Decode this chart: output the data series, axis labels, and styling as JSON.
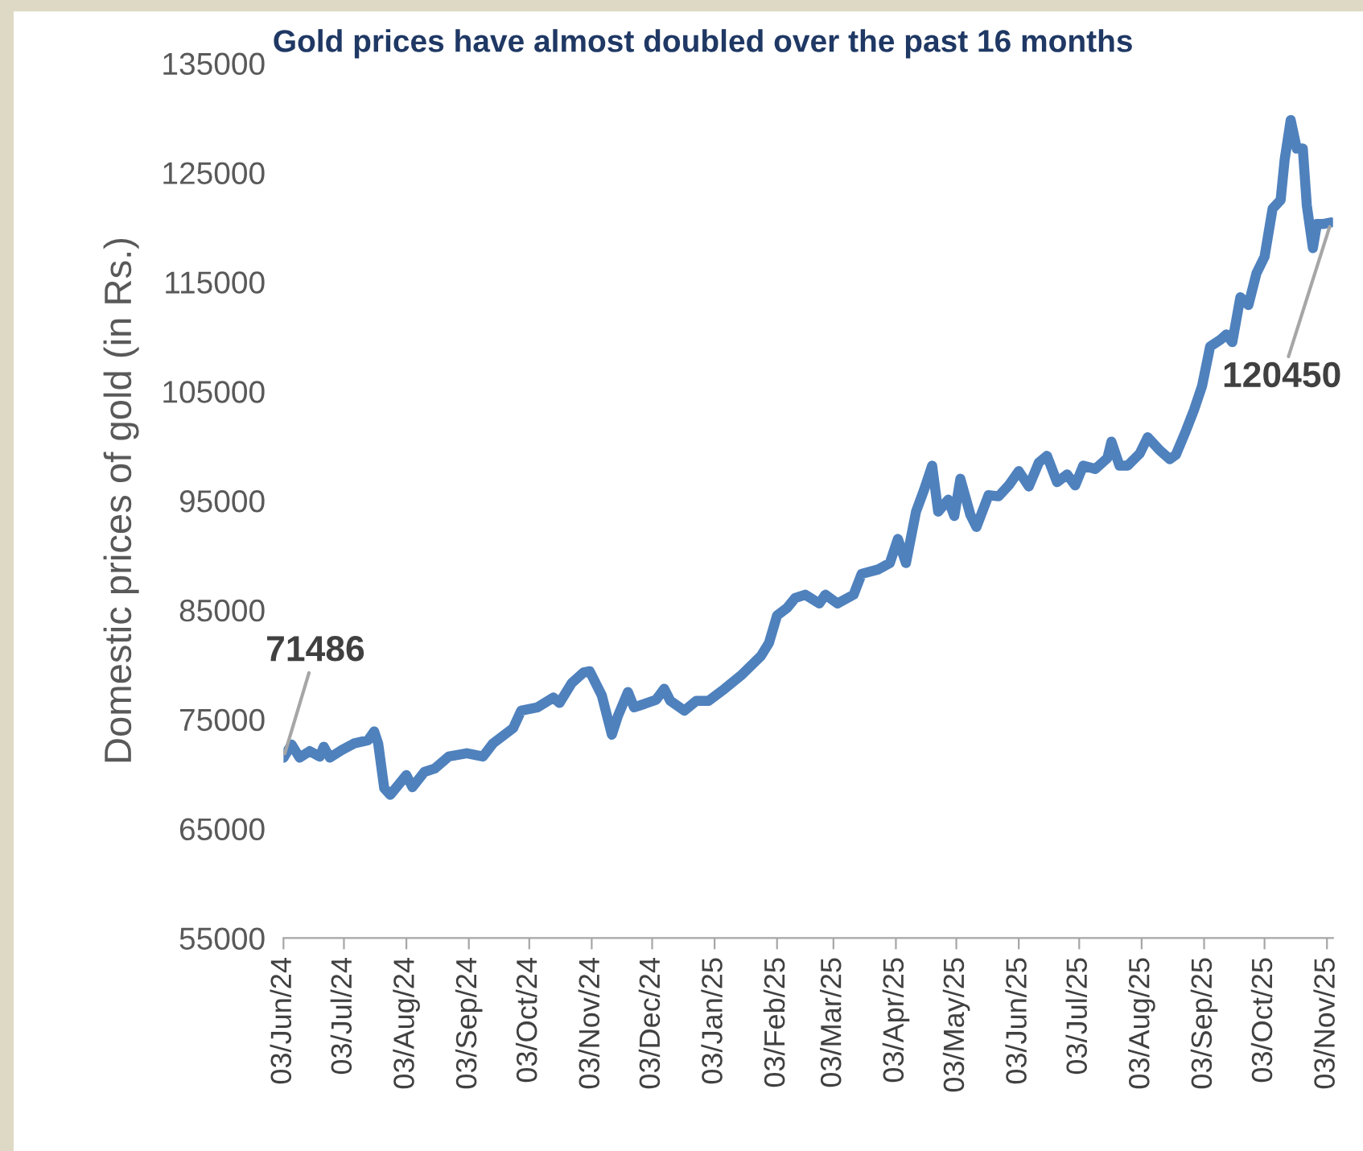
{
  "chart_data": {
    "type": "line",
    "title": "Gold prices have almost doubled over the past 16 months",
    "ylabel": "Domestic prices of gold (in Rs.)",
    "x": [
      "2024-06-03",
      "2024-06-07",
      "2024-06-11",
      "2024-06-16",
      "2024-06-21",
      "2024-06-23",
      "2024-06-26",
      "2024-07-02",
      "2024-07-08",
      "2024-07-15",
      "2024-07-18",
      "2024-07-20",
      "2024-07-23",
      "2024-07-26",
      "2024-07-30",
      "2024-08-03",
      "2024-08-06",
      "2024-08-12",
      "2024-08-17",
      "2024-08-24",
      "2024-09-02",
      "2024-09-10",
      "2024-09-15",
      "2024-09-25",
      "2024-09-29",
      "2024-10-07",
      "2024-10-15",
      "2024-10-18",
      "2024-10-24",
      "2024-10-30",
      "2024-11-02",
      "2024-11-08",
      "2024-11-13",
      "2024-11-16",
      "2024-11-21",
      "2024-11-24",
      "2024-11-29",
      "2024-12-05",
      "2024-12-09",
      "2024-12-12",
      "2024-12-19",
      "2024-12-25",
      "2024-12-31",
      "2025-01-08",
      "2025-01-16",
      "2025-01-26",
      "2025-01-30",
      "2025-02-03",
      "2025-02-08",
      "2025-02-12",
      "2025-02-17",
      "2025-02-24",
      "2025-02-27",
      "2025-03-05",
      "2025-03-13",
      "2025-03-17",
      "2025-03-25",
      "2025-03-31",
      "2025-04-04",
      "2025-04-08",
      "2025-04-13",
      "2025-04-17",
      "2025-04-21",
      "2025-04-24",
      "2025-04-29",
      "2025-05-02",
      "2025-05-05",
      "2025-05-10",
      "2025-05-13",
      "2025-05-19",
      "2025-05-24",
      "2025-05-29",
      "2025-06-03",
      "2025-06-08",
      "2025-06-13",
      "2025-06-17",
      "2025-06-22",
      "2025-06-27",
      "2025-07-01",
      "2025-07-05",
      "2025-07-11",
      "2025-07-17",
      "2025-07-19",
      "2025-07-23",
      "2025-07-27",
      "2025-08-02",
      "2025-08-06",
      "2025-08-12",
      "2025-08-17",
      "2025-08-20",
      "2025-08-25",
      "2025-08-29",
      "2025-09-02",
      "2025-09-06",
      "2025-09-11",
      "2025-09-14",
      "2025-09-17",
      "2025-09-21",
      "2025-09-25",
      "2025-09-29",
      "2025-10-03",
      "2025-10-07",
      "2025-10-11",
      "2025-10-13",
      "2025-10-16",
      "2025-10-19",
      "2025-10-22",
      "2025-10-24",
      "2025-10-27",
      "2025-10-29",
      "2025-11-01",
      "2025-11-05"
    ],
    "series": [
      {
        "color": "#4f81bd",
        "values": [
          71486,
          72700,
          71500,
          72100,
          71600,
          72500,
          71500,
          72200,
          72800,
          73100,
          73900,
          72800,
          68700,
          68100,
          69000,
          69900,
          68800,
          70200,
          70500,
          71600,
          71900,
          71600,
          72800,
          74200,
          75800,
          76100,
          77000,
          76500,
          78300,
          79300,
          79400,
          77200,
          73600,
          75300,
          77500,
          76100,
          76400,
          76800,
          77800,
          76700,
          75800,
          76700,
          76700,
          77800,
          79000,
          80800,
          82000,
          84500,
          85200,
          86100,
          86400,
          85600,
          86400,
          85600,
          86400,
          88300,
          88700,
          89300,
          91500,
          89300,
          94000,
          96000,
          98200,
          94000,
          95100,
          93600,
          97000,
          93700,
          92600,
          95500,
          95400,
          96400,
          97700,
          96300,
          98500,
          99100,
          96700,
          97400,
          96400,
          98200,
          97900,
          98900,
          100400,
          98200,
          98200,
          99300,
          100800,
          99600,
          98800,
          99200,
          101400,
          103300,
          105500,
          109100,
          109700,
          110200,
          109500,
          113600,
          112900,
          115800,
          117300,
          121700,
          122500,
          126200,
          129800,
          127200,
          127200,
          122000,
          118100,
          120300,
          120300,
          120450
        ]
      }
    ],
    "xlim": [
      "2024-06-03",
      "2025-11-06"
    ],
    "xticks": [
      {
        "value": "2024-06-03",
        "label": "03/Jun/24"
      },
      {
        "value": "2024-07-03",
        "label": "03/Jul/24"
      },
      {
        "value": "2024-08-03",
        "label": "03/Aug/24"
      },
      {
        "value": "2024-09-03",
        "label": "03/Sep/24"
      },
      {
        "value": "2024-10-03",
        "label": "03/Oct/24"
      },
      {
        "value": "2024-11-03",
        "label": "03/Nov/24"
      },
      {
        "value": "2024-12-03",
        "label": "03/Dec/24"
      },
      {
        "value": "2025-01-03",
        "label": "03/Jan/25"
      },
      {
        "value": "2025-02-03",
        "label": "03/Feb/25"
      },
      {
        "value": "2025-03-03",
        "label": "03/Mar/25"
      },
      {
        "value": "2025-04-03",
        "label": "03/Apr/25"
      },
      {
        "value": "2025-05-03",
        "label": "03/May/25"
      },
      {
        "value": "2025-06-03",
        "label": "03/Jun/25"
      },
      {
        "value": "2025-07-03",
        "label": "03/Jul/25"
      },
      {
        "value": "2025-08-03",
        "label": "03/Aug/25"
      },
      {
        "value": "2025-09-03",
        "label": "03/Sep/25"
      },
      {
        "value": "2025-10-03",
        "label": "03/Oct/25"
      },
      {
        "value": "2025-11-03",
        "label": "03/Nov/25"
      }
    ],
    "ylim": [
      55000,
      135000
    ],
    "yticks": [
      55000,
      65000,
      75000,
      85000,
      95000,
      105000,
      115000,
      125000,
      135000
    ],
    "annotations": [
      {
        "text": "71486",
        "x": "2024-06-03",
        "y": 71486
      },
      {
        "text": "120450",
        "x": "2025-11-05",
        "y": 120450
      }
    ],
    "grid": false,
    "legend": false,
    "marker": "none",
    "line_style": "solid"
  }
}
